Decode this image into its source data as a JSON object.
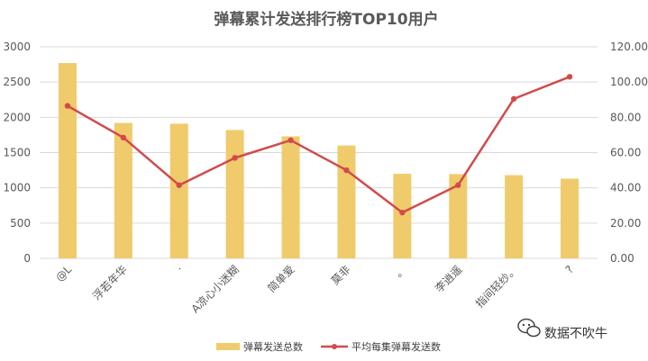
{
  "chart_data": {
    "type": "bar",
    "title": "弹幕累计发送排行榜TOP10用户",
    "categories": [
      "@L",
      "浮若年华",
      "·",
      "A凉心小迷糊",
      "简单爱",
      "莫非",
      "。",
      "李逍遥",
      "指间轻纱。",
      "?"
    ],
    "series": [
      {
        "name": "弹幕发送总数",
        "type": "bar",
        "axis": "left",
        "color": "#f0cb6b",
        "values": [
          2770,
          1920,
          1910,
          1820,
          1730,
          1600,
          1200,
          1195,
          1180,
          1130
        ]
      },
      {
        "name": "平均每集弹幕发送数",
        "type": "line",
        "axis": "right",
        "color": "#d24b4b",
        "values": [
          86.5,
          68.5,
          41.5,
          57.0,
          67.0,
          50.0,
          26.0,
          41.5,
          90.5,
          103.0
        ]
      }
    ],
    "y_left": {
      "min": 0,
      "max": 3000,
      "ticks": [
        "0",
        "500",
        "1000",
        "1500",
        "2000",
        "2500",
        "3000"
      ]
    },
    "y_right": {
      "min": 0,
      "max": 120,
      "ticks": [
        "0.00",
        "20.00",
        "40.00",
        "60.00",
        "80.00",
        "100.00",
        "120.00"
      ]
    },
    "grid": true,
    "legend_position": "bottom"
  },
  "watermark": {
    "text": "数据不吹牛"
  }
}
